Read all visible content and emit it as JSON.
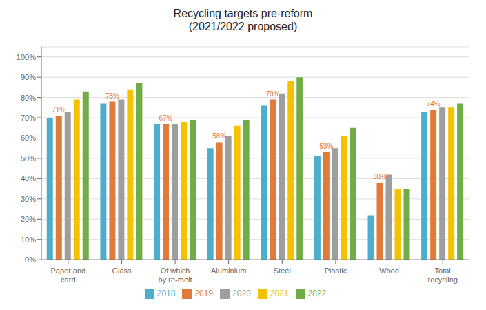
{
  "chart_data": {
    "type": "bar",
    "title": "Recycling targets pre-reform\n(2021/2022 proposed)",
    "categories": [
      "Paper and\ncard",
      "Glass",
      "Of which\nby re-melt",
      "Aluminium",
      "Steel",
      "Plastic",
      "Wood",
      "Total\nrecycling"
    ],
    "series": [
      {
        "name": "2018",
        "color": "#4DAECC",
        "values": [
          0.7,
          0.77,
          0.67,
          0.55,
          0.76,
          0.51,
          0.22,
          0.73
        ]
      },
      {
        "name": "2019",
        "color": "#E07B39",
        "values": [
          0.71,
          0.78,
          0.67,
          0.58,
          0.79,
          0.53,
          0.38,
          0.74
        ],
        "data_labels": true,
        "value_labels": [
          "71%",
          "78%",
          "67%",
          "58%",
          "79%",
          "53%",
          "38%",
          "74%"
        ]
      },
      {
        "name": "2020",
        "color": "#9E9E9E",
        "values": [
          0.73,
          0.79,
          0.67,
          0.61,
          0.82,
          0.55,
          0.42,
          0.75
        ]
      },
      {
        "name": "2021",
        "color": "#F5C200",
        "values": [
          0.79,
          0.84,
          0.68,
          0.66,
          0.88,
          0.61,
          0.35,
          0.75
        ]
      },
      {
        "name": "2022",
        "color": "#70AD47",
        "values": [
          0.83,
          0.87,
          0.69,
          0.69,
          0.9,
          0.65,
          0.35,
          0.77
        ]
      }
    ],
    "ylim": [
      0,
      1.05
    ],
    "yticks": [
      {
        "value": 0.0,
        "label": "0%"
      },
      {
        "value": 0.1,
        "label": "10%"
      },
      {
        "value": 0.2,
        "label": "20%"
      },
      {
        "value": 0.3,
        "label": "30%"
      },
      {
        "value": 0.4,
        "label": "40%"
      },
      {
        "value": 0.5,
        "label": "50%"
      },
      {
        "value": 0.6,
        "label": "60%"
      },
      {
        "value": 0.7,
        "label": "70%"
      },
      {
        "value": 0.8,
        "label": "80%"
      },
      {
        "value": 0.9,
        "label": "90%"
      },
      {
        "value": 1.0,
        "label": "100%"
      }
    ],
    "grid": true,
    "legend": "bottom"
  }
}
